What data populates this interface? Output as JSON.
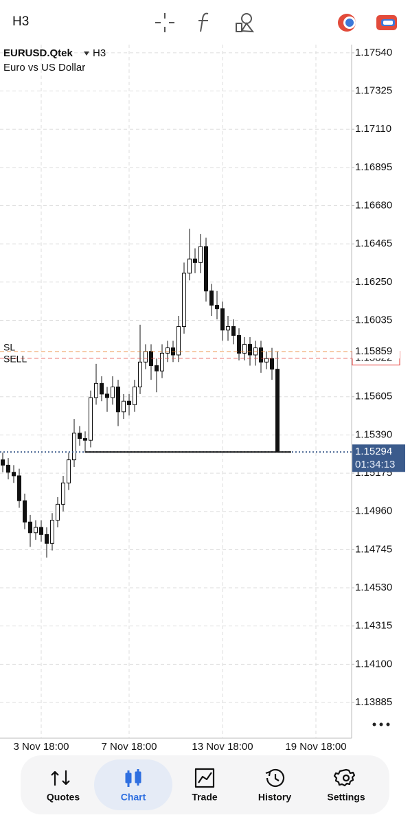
{
  "header": {
    "timeframe": "H3"
  },
  "chart_data": {
    "type": "candlestick",
    "symbol": "EURUSD.Qtek",
    "timeframe": "H3",
    "description": "Euro vs US Dollar",
    "open": [
      1.1525,
      1.1522,
      1.1518,
      1.1516,
      1.1502,
      1.149,
      1.1484,
      1.1487,
      1.1483,
      1.1478,
      1.1491,
      1.15,
      1.1512,
      1.1525,
      1.154,
      1.1537,
      1.1536,
      1.156,
      1.1568,
      1.1562,
      1.156,
      1.1566,
      1.1552,
      1.1558,
      1.1556,
      1.1566,
      1.158,
      1.1586,
      1.1578,
      1.1575,
      1.1585,
      1.1588,
      1.1584,
      1.16,
      1.163,
      1.1638,
      1.1636,
      1.1645,
      1.162,
      1.1612,
      1.161,
      1.1598,
      1.16,
      1.1595,
      1.1585,
      1.159,
      1.1584,
      1.1588,
      1.158,
      1.1582,
      1.1576
    ],
    "high": [
      1.1529,
      1.1526,
      1.1522,
      1.152,
      1.1506,
      1.1494,
      1.1491,
      1.1491,
      1.1487,
      1.1495,
      1.1504,
      1.1516,
      1.1529,
      1.1548,
      1.1544,
      1.1541,
      1.1564,
      1.1579,
      1.1572,
      1.1566,
      1.1572,
      1.157,
      1.1562,
      1.1562,
      1.157,
      1.1601,
      1.159,
      1.159,
      1.1582,
      1.159,
      1.1592,
      1.1592,
      1.1606,
      1.1636,
      1.1655,
      1.1644,
      1.1652,
      1.165,
      1.1624,
      1.162,
      1.1614,
      1.1606,
      1.1604,
      1.1599,
      1.1594,
      1.1594,
      1.1592,
      1.1592,
      1.1586,
      1.1588,
      1.1586
    ],
    "low": [
      1.1518,
      1.1514,
      1.1512,
      1.1498,
      1.1486,
      1.1476,
      1.148,
      1.1479,
      1.147,
      1.1474,
      1.1487,
      1.1496,
      1.1508,
      1.1521,
      1.1533,
      1.1529,
      1.1532,
      1.1556,
      1.1558,
      1.1552,
      1.1556,
      1.1544,
      1.1548,
      1.155,
      1.1552,
      1.1562,
      1.1576,
      1.157,
      1.1563,
      1.1571,
      1.158,
      1.158,
      1.158,
      1.1596,
      1.1626,
      1.163,
      1.163,
      1.1614,
      1.1606,
      1.1604,
      1.1592,
      1.1592,
      1.159,
      1.1581,
      1.1581,
      1.1578,
      1.1578,
      1.1574,
      1.1576,
      1.157,
      1.15294
    ],
    "close": [
      1.1522,
      1.1518,
      1.1516,
      1.1502,
      1.149,
      1.1484,
      1.1487,
      1.1483,
      1.1478,
      1.1491,
      1.15,
      1.1512,
      1.1525,
      1.154,
      1.1537,
      1.1536,
      1.156,
      1.1568,
      1.1562,
      1.156,
      1.1566,
      1.1552,
      1.1558,
      1.1556,
      1.1566,
      1.158,
      1.1586,
      1.1578,
      1.1575,
      1.1585,
      1.1588,
      1.1584,
      1.16,
      1.163,
      1.1638,
      1.1636,
      1.1645,
      1.162,
      1.1612,
      1.161,
      1.1598,
      1.16,
      1.1595,
      1.1585,
      1.159,
      1.1584,
      1.1588,
      1.158,
      1.1582,
      1.1576,
      1.15294
    ],
    "ylim": [
      1.13684,
      1.17586
    ],
    "yticks": [
      {
        "value": 1.1754,
        "label": "1.17540"
      },
      1.17325,
      {
        "value": 1.1711,
        "label": "1.17110"
      },
      1.16895,
      {
        "value": 1.1668,
        "label": "1.16680"
      },
      1.16465,
      {
        "value": 1.1625,
        "label": "1.16250"
      },
      1.16035,
      1.15605,
      {
        "value": 1.1539,
        "label": "1.15390"
      },
      1.15175,
      {
        "value": 1.1496,
        "label": "1.14960"
      },
      1.14745,
      {
        "value": 1.1453,
        "label": "1.14530"
      },
      1.14315,
      {
        "value": 1.141,
        "label": "1.14100"
      },
      1.13885
    ],
    "xlim": [
      -0.5,
      63.5
    ],
    "xticks": [
      {
        "value": 7,
        "label": "3 Nov 18:00"
      },
      {
        "value": 23,
        "label": "7 Nov 18:00"
      },
      {
        "value": 40,
        "label": "13 Nov 18:00"
      },
      {
        "value": 57,
        "label": "19 Nov 18:00"
      }
    ],
    "grid": true,
    "levels": [
      {
        "name": "SL",
        "value": 1.15859,
        "color": "#e8822a"
      },
      {
        "name": "SELL",
        "value": 1.15822,
        "color": "#e53935"
      }
    ],
    "bid": {
      "value": 1.15294,
      "countdown": "01:34:13",
      "color": "#3b5b8c"
    }
  },
  "nav": {
    "items": [
      "Quotes",
      "Chart",
      "Trade",
      "History",
      "Settings"
    ],
    "active": 1
  }
}
